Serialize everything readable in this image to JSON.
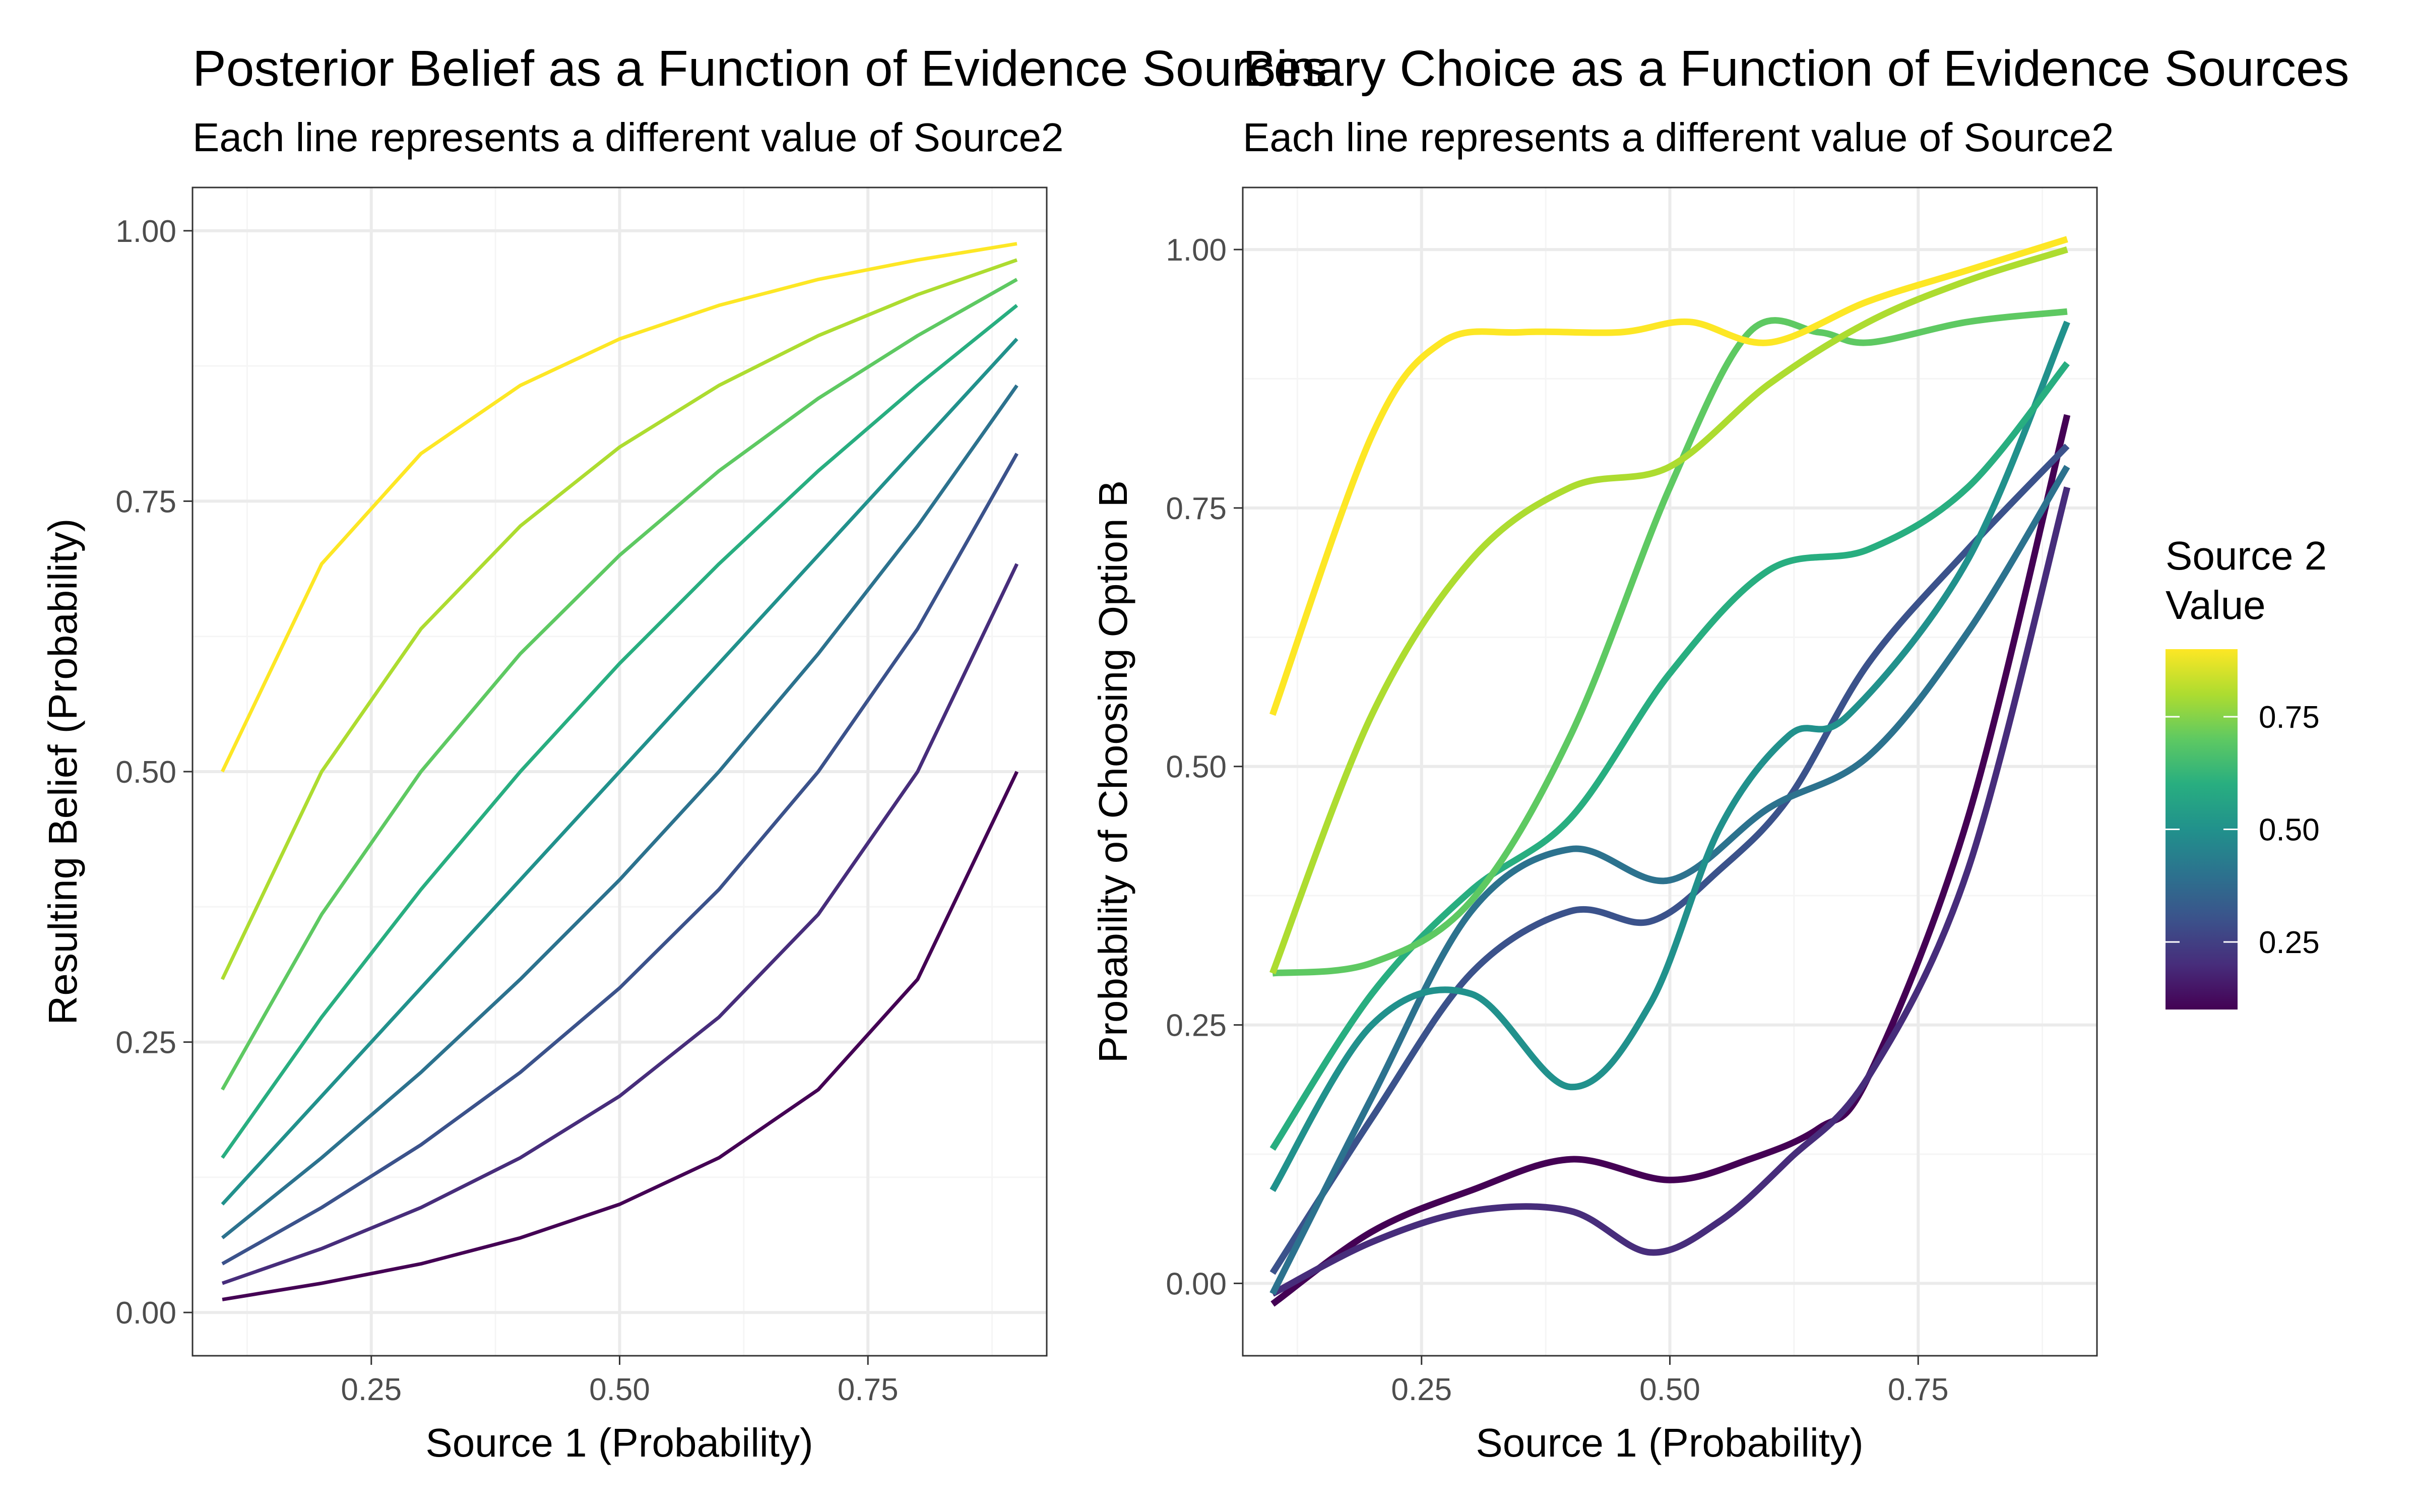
{
  "chart_data": [
    {
      "type": "line",
      "title": "Posterior Belief as a Function of Evidence Sources",
      "subtitle": "Each line represents a different value of Source2",
      "xlabel": "Source 1 (Probability)",
      "ylabel": "Resulting Belief (Probability)",
      "xlim": [
        0.07,
        0.93
      ],
      "ylim": [
        -0.04,
        1.04
      ],
      "xticks": [
        0.25,
        0.5,
        0.75
      ],
      "xtick_labels": [
        "0.25",
        "0.50",
        "0.75"
      ],
      "yticks": [
        0.0,
        0.25,
        0.5,
        0.75,
        1.0
      ],
      "ytick_labels": [
        "0.00",
        "0.25",
        "0.50",
        "0.75",
        "1.00"
      ],
      "grid": true,
      "x": [
        0.1,
        0.2,
        0.3,
        0.4,
        0.5,
        0.6,
        0.7,
        0.8,
        0.9
      ],
      "series": [
        {
          "source2": 0.1,
          "color": "#440154",
          "values": [
            0.012,
            0.027,
            0.045,
            0.069,
            0.1,
            0.143,
            0.206,
            0.308,
            0.5
          ]
        },
        {
          "source2": 0.2,
          "color": "#472d7b",
          "values": [
            0.027,
            0.059,
            0.097,
            0.143,
            0.2,
            0.273,
            0.368,
            0.5,
            0.692
          ]
        },
        {
          "source2": 0.3,
          "color": "#3b528b",
          "values": [
            0.045,
            0.097,
            0.155,
            0.222,
            0.3,
            0.391,
            0.5,
            0.632,
            0.794
          ]
        },
        {
          "source2": 0.4,
          "color": "#2c728e",
          "values": [
            0.069,
            0.143,
            0.222,
            0.308,
            0.4,
            0.5,
            0.609,
            0.727,
            0.857
          ]
        },
        {
          "source2": 0.5,
          "color": "#21918c",
          "values": [
            0.1,
            0.2,
            0.3,
            0.4,
            0.5,
            0.6,
            0.7,
            0.8,
            0.9
          ]
        },
        {
          "source2": 0.6,
          "color": "#28ae80",
          "values": [
            0.143,
            0.273,
            0.391,
            0.5,
            0.6,
            0.692,
            0.778,
            0.857,
            0.931
          ]
        },
        {
          "source2": 0.7,
          "color": "#5ec962",
          "values": [
            0.206,
            0.368,
            0.5,
            0.609,
            0.7,
            0.778,
            0.845,
            0.903,
            0.955
          ]
        },
        {
          "source2": 0.8,
          "color": "#addc30",
          "values": [
            0.308,
            0.5,
            0.632,
            0.727,
            0.8,
            0.857,
            0.903,
            0.941,
            0.973
          ]
        },
        {
          "source2": 0.9,
          "color": "#fde725",
          "values": [
            0.5,
            0.692,
            0.794,
            0.857,
            0.9,
            0.931,
            0.955,
            0.973,
            0.988
          ]
        }
      ]
    },
    {
      "type": "line",
      "title": "Binary Choice as a Function of Evidence Sources",
      "subtitle": "Each line represents a different value of Source2",
      "xlabel": "Source 1 (Probability)",
      "ylabel": "Probability of Choosing Option B",
      "xlim": [
        0.07,
        0.93
      ],
      "ylim": [
        -0.07,
        1.06
      ],
      "xticks": [
        0.25,
        0.5,
        0.75
      ],
      "xtick_labels": [
        "0.25",
        "0.50",
        "0.75"
      ],
      "yticks": [
        0.0,
        0.25,
        0.5,
        0.75,
        1.0
      ],
      "ytick_labels": [
        "0.00",
        "0.25",
        "0.50",
        "0.75",
        "1.00"
      ],
      "grid": true,
      "series": [
        {
          "source2": 0.1,
          "color": "#440154",
          "points": [
            [
              0.1,
              -0.02
            ],
            [
              0.2,
              0.05
            ],
            [
              0.3,
              0.09
            ],
            [
              0.4,
              0.12
            ],
            [
              0.5,
              0.1
            ],
            [
              0.58,
              0.12
            ],
            [
              0.65,
              0.15
            ],
            [
              0.7,
              0.2
            ],
            [
              0.8,
              0.45
            ],
            [
              0.9,
              0.84
            ]
          ]
        },
        {
          "source2": 0.2,
          "color": "#472d7b",
          "points": [
            [
              0.1,
              -0.01
            ],
            [
              0.2,
              0.04
            ],
            [
              0.3,
              0.07
            ],
            [
              0.4,
              0.07
            ],
            [
              0.48,
              0.03
            ],
            [
              0.55,
              0.06
            ],
            [
              0.62,
              0.12
            ],
            [
              0.7,
              0.2
            ],
            [
              0.8,
              0.4
            ],
            [
              0.9,
              0.77
            ]
          ]
        },
        {
          "source2": 0.3,
          "color": "#3b528b",
          "points": [
            [
              0.1,
              0.01
            ],
            [
              0.2,
              0.16
            ],
            [
              0.3,
              0.3
            ],
            [
              0.4,
              0.36
            ],
            [
              0.48,
              0.35
            ],
            [
              0.55,
              0.4
            ],
            [
              0.62,
              0.47
            ],
            [
              0.7,
              0.6
            ],
            [
              0.8,
              0.71
            ],
            [
              0.9,
              0.81
            ]
          ]
        },
        {
          "source2": 0.4,
          "color": "#2c728e",
          "points": [
            [
              0.1,
              -0.01
            ],
            [
              0.2,
              0.18
            ],
            [
              0.3,
              0.36
            ],
            [
              0.4,
              0.42
            ],
            [
              0.5,
              0.39
            ],
            [
              0.6,
              0.46
            ],
            [
              0.7,
              0.51
            ],
            [
              0.8,
              0.63
            ],
            [
              0.9,
              0.79
            ]
          ]
        },
        {
          "source2": 0.5,
          "color": "#21918c",
          "points": [
            [
              0.1,
              0.09
            ],
            [
              0.2,
              0.25
            ],
            [
              0.3,
              0.28
            ],
            [
              0.4,
              0.19
            ],
            [
              0.48,
              0.27
            ],
            [
              0.55,
              0.44
            ],
            [
              0.62,
              0.53
            ],
            [
              0.68,
              0.55
            ],
            [
              0.8,
              0.7
            ],
            [
              0.9,
              0.93
            ]
          ]
        },
        {
          "source2": 0.6,
          "color": "#28ae80",
          "points": [
            [
              0.1,
              0.13
            ],
            [
              0.2,
              0.28
            ],
            [
              0.3,
              0.38
            ],
            [
              0.4,
              0.45
            ],
            [
              0.5,
              0.59
            ],
            [
              0.6,
              0.69
            ],
            [
              0.7,
              0.71
            ],
            [
              0.8,
              0.77
            ],
            [
              0.9,
              0.89
            ]
          ]
        },
        {
          "source2": 0.7,
          "color": "#5ec962",
          "points": [
            [
              0.1,
              0.3
            ],
            [
              0.2,
              0.31
            ],
            [
              0.3,
              0.37
            ],
            [
              0.4,
              0.53
            ],
            [
              0.5,
              0.77
            ],
            [
              0.58,
              0.92
            ],
            [
              0.65,
              0.92
            ],
            [
              0.7,
              0.91
            ],
            [
              0.8,
              0.93
            ],
            [
              0.9,
              0.94
            ]
          ]
        },
        {
          "source2": 0.8,
          "color": "#addc30",
          "points": [
            [
              0.1,
              0.3
            ],
            [
              0.2,
              0.55
            ],
            [
              0.3,
              0.7
            ],
            [
              0.4,
              0.77
            ],
            [
              0.5,
              0.79
            ],
            [
              0.6,
              0.87
            ],
            [
              0.7,
              0.93
            ],
            [
              0.8,
              0.97
            ],
            [
              0.9,
              1.0
            ]
          ]
        },
        {
          "source2": 0.9,
          "color": "#fde725",
          "points": [
            [
              0.1,
              0.55
            ],
            [
              0.2,
              0.82
            ],
            [
              0.27,
              0.91
            ],
            [
              0.35,
              0.92
            ],
            [
              0.45,
              0.92
            ],
            [
              0.52,
              0.93
            ],
            [
              0.6,
              0.91
            ],
            [
              0.7,
              0.95
            ],
            [
              0.8,
              0.98
            ],
            [
              0.9,
              1.01
            ]
          ]
        }
      ]
    }
  ],
  "legend": {
    "title_line1": "Source 2",
    "title_line2": "Value",
    "range": [
      0.1,
      0.9
    ],
    "ticks": [
      0.25,
      0.5,
      0.75
    ],
    "tick_labels": [
      "0.25",
      "0.50",
      "0.75"
    ],
    "colors": [
      "#440154",
      "#472d7b",
      "#3b528b",
      "#2c728e",
      "#21918c",
      "#28ae80",
      "#5ec962",
      "#addc30",
      "#fde725"
    ]
  },
  "style": {
    "panel_border": "#333333",
    "grid_major": "#ebebeb",
    "grid_minor": "#f5f5f5",
    "tick_text": "#4d4d4d"
  }
}
